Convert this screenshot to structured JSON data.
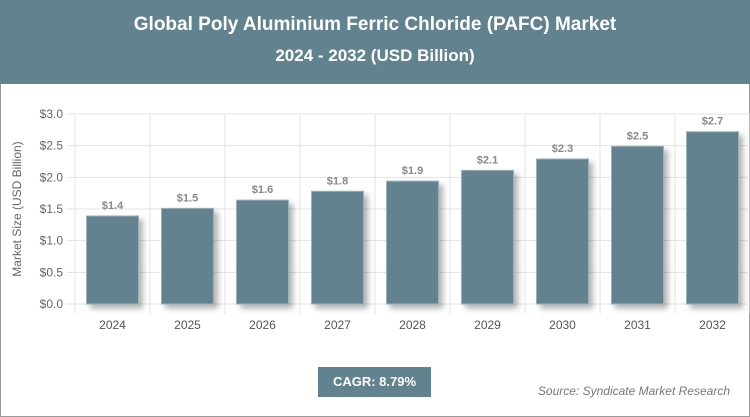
{
  "header": {
    "title": "Global Poly Aluminium Ferric Chloride (PAFC) Market",
    "subtitle": "2024 - 2032 (USD Billion)"
  },
  "chart_data": {
    "type": "bar",
    "title": "Global Poly Aluminium Ferric Chloride (PAFC) Market",
    "subtitle": "2024 - 2032 (USD Billion)",
    "categories": [
      "2024",
      "2025",
      "2026",
      "2027",
      "2028",
      "2029",
      "2030",
      "2031",
      "2032"
    ],
    "values": [
      1.39,
      1.51,
      1.64,
      1.78,
      1.94,
      2.11,
      2.29,
      2.49,
      2.72
    ],
    "data_labels": [
      "$1.4",
      "$1.5",
      "$1.6",
      "$1.8",
      "$1.9",
      "$2.1",
      "$2.3",
      "$2.5",
      "$2.7"
    ],
    "ylabel": "Market Size (USD Billion)",
    "xlabel": "",
    "ylim": [
      0,
      3.0
    ],
    "yticks": [
      "$0.0",
      "$0.5",
      "$1.0",
      "$1.5",
      "$2.0",
      "$2.5",
      "$3.0"
    ],
    "grid": true,
    "bar_color": "#62828f"
  },
  "footer": {
    "cagr": "CAGR: 8.79%",
    "source": "Source: Syndicate Market Research"
  }
}
